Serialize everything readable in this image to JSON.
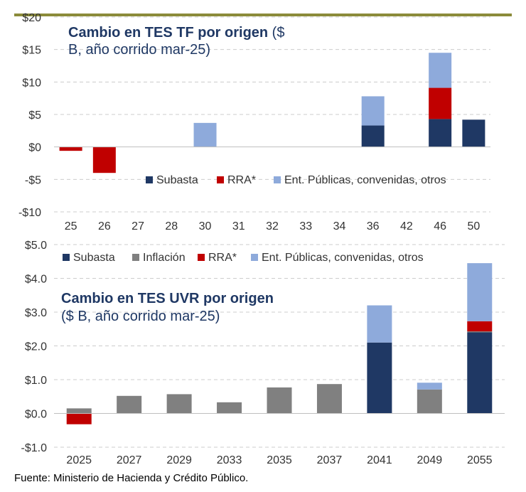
{
  "colors": {
    "accent_bar": "#8b8b3a",
    "subasta": "#1f3864",
    "inflacion": "#808080",
    "rra": "#c00000",
    "ent": "#8eaadb",
    "grid": "#cccccc",
    "axis_text": "#333333",
    "title": "#1f3864"
  },
  "chart_data": [
    {
      "type": "bar",
      "stacked": true,
      "title": "Cambio en TES TF por origen",
      "subtitle_paren": "($ B, año corrido mar-25)",
      "title_line1_bold": "Cambio en TES TF por origen",
      "title_line1_rest": " ($",
      "title_line2": "B, año corrido mar-25)",
      "categories": [
        "25",
        "26",
        "27",
        "28",
        "30",
        "31",
        "32",
        "33",
        "34",
        "36",
        "42",
        "46",
        "50"
      ],
      "y_ticks": [
        20,
        15,
        10,
        5,
        0,
        -5,
        -10
      ],
      "y_tick_labels": [
        "$20",
        "$15",
        "$10",
        "$5",
        "$0",
        "-$5",
        "-$10"
      ],
      "ylim": [
        -10,
        20
      ],
      "series": [
        {
          "name": "Subasta",
          "color_key": "subasta",
          "values": [
            0,
            0,
            0,
            0,
            0,
            0,
            0,
            0,
            0,
            3.3,
            0,
            4.3,
            4.2
          ]
        },
        {
          "name": "RRA*",
          "color_key": "rra",
          "values": [
            -0.6,
            -4.0,
            0,
            0,
            0,
            0,
            0,
            0,
            0,
            0,
            0,
            4.8,
            0
          ]
        },
        {
          "name": "Ent. Públicas, convenidas, otros",
          "color_key": "ent",
          "values": [
            0,
            0,
            0,
            0,
            3.7,
            0,
            0,
            0,
            0,
            4.5,
            0,
            5.4,
            0
          ]
        }
      ],
      "legend_position": "middle-right"
    },
    {
      "type": "bar",
      "stacked": true,
      "title": "Cambio en TES UVR por origen",
      "title_line1_bold": "Cambio en TES UVR por origen",
      "title_line2": "($ B, año corrido mar-25)",
      "categories": [
        "2025",
        "2027",
        "2029",
        "2033",
        "2035",
        "2037",
        "2041",
        "2049",
        "2055"
      ],
      "y_ticks": [
        5.0,
        4.0,
        3.0,
        2.0,
        1.0,
        0.0,
        -1.0
      ],
      "y_tick_labels": [
        "$5.0",
        "$4.0",
        "$3.0",
        "$2.0",
        "$1.0",
        "$0.0",
        "-$1.0"
      ],
      "ylim": [
        -1.0,
        5.0
      ],
      "series": [
        {
          "name": "Subasta",
          "color_key": "subasta",
          "values": [
            0,
            0,
            0,
            0,
            0,
            0,
            2.1,
            0,
            2.4
          ]
        },
        {
          "name": "Inflación",
          "color_key": "inflacion",
          "values": [
            0.15,
            0.52,
            0.57,
            0.33,
            0.77,
            0.87,
            0,
            0.71,
            0.03
          ]
        },
        {
          "name": "RRA*",
          "color_key": "rra",
          "values": [
            -0.32,
            0,
            0,
            0,
            0,
            0,
            0,
            0,
            0.3
          ]
        },
        {
          "name": "Ent. Públicas, convenidas, otros",
          "color_key": "ent",
          "values": [
            0,
            0,
            0,
            0,
            0,
            0,
            1.1,
            0.2,
            1.72
          ]
        }
      ],
      "legend_position": "top"
    }
  ],
  "source": "Fuente: Ministerio de Hacienda y Crédito Público."
}
